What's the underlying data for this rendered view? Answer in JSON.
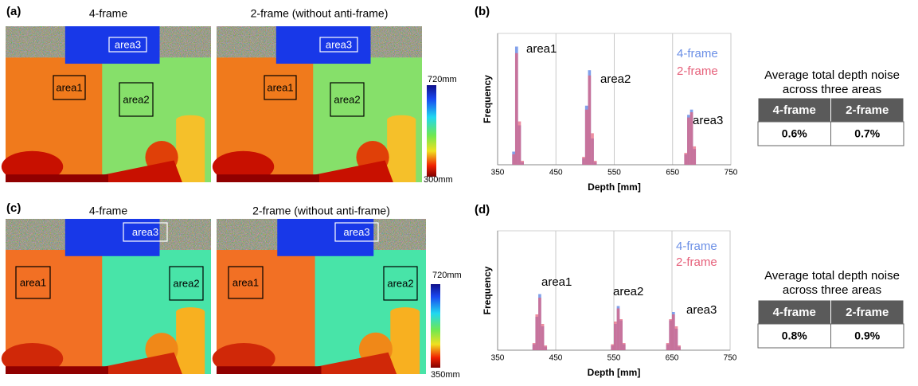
{
  "panels": [
    {
      "label": "(a)",
      "images": [
        {
          "title": "4-frame",
          "areas": [
            "area1",
            "area2",
            "area3"
          ]
        },
        {
          "title": "2-frame (without anti-frame)",
          "areas": [
            "area1",
            "area2",
            "area3"
          ]
        }
      ],
      "colorbar": {
        "top": "720mm",
        "bottom": "300mm"
      }
    },
    {
      "label": "(c)",
      "images": [
        {
          "title": "4-frame",
          "areas": [
            "area1",
            "area2",
            "area3"
          ]
        },
        {
          "title": "2-frame (without anti-frame)",
          "areas": [
            "area1",
            "area2",
            "area3"
          ]
        }
      ],
      "colorbar": {
        "top": "720mm",
        "bottom": "350mm"
      }
    }
  ],
  "chart_data": [
    {
      "type": "histogram",
      "label": "(b)",
      "xlabel": "Depth [mm]",
      "ylabel": "Frequency",
      "xlim": [
        350,
        750
      ],
      "xticks": [
        350,
        450,
        550,
        650,
        750
      ],
      "ylim": [
        0,
        100
      ],
      "grid": true,
      "bins": [
        375,
        380,
        385,
        390,
        395,
        400,
        405,
        410,
        415,
        420,
        425,
        430,
        435,
        440,
        445,
        450,
        455,
        460,
        465,
        470,
        475,
        480,
        485,
        490,
        495,
        500,
        505,
        510,
        515,
        520,
        525,
        530,
        535,
        540,
        545,
        550,
        555,
        560,
        565,
        570,
        575,
        580,
        585,
        590,
        595,
        600,
        605,
        610,
        615,
        620,
        625,
        630,
        635,
        640,
        645,
        650,
        655,
        660,
        665,
        670,
        675,
        680,
        685,
        690
      ],
      "series": [
        {
          "name": "4-frame",
          "color": "#6b8fe6",
          "values": [
            10,
            90,
            30,
            2,
            0,
            0,
            0,
            0,
            0,
            0,
            0,
            0,
            0,
            0,
            0,
            0,
            0,
            0,
            0,
            0,
            0,
            0,
            0,
            0,
            5,
            45,
            72,
            20,
            2,
            0,
            0,
            0,
            0,
            0,
            0,
            0,
            0,
            0,
            0,
            0,
            0,
            0,
            0,
            0,
            0,
            0,
            0,
            0,
            0,
            0,
            0,
            0,
            0,
            0,
            0,
            0,
            0,
            0,
            0,
            8,
            38,
            42,
            12
          ]
        },
        {
          "name": "2-frame",
          "color": "#e6607a",
          "values": [
            8,
            85,
            33,
            3,
            0,
            0,
            0,
            0,
            0,
            0,
            0,
            0,
            0,
            0,
            0,
            0,
            0,
            0,
            0,
            0,
            0,
            0,
            0,
            0,
            6,
            42,
            68,
            24,
            3,
            0,
            0,
            0,
            0,
            0,
            0,
            0,
            0,
            0,
            0,
            0,
            0,
            0,
            0,
            0,
            0,
            0,
            0,
            0,
            0,
            0,
            0,
            0,
            0,
            0,
            0,
            0,
            0,
            0,
            0,
            9,
            36,
            40,
            14
          ]
        }
      ],
      "annotations": [
        "area1",
        "area2",
        "area3"
      ]
    },
    {
      "type": "histogram",
      "label": "(d)",
      "xlabel": "Depth [mm]",
      "ylabel": "Frequency",
      "xlim": [
        350,
        750
      ],
      "xticks": [
        350,
        450,
        550,
        650,
        750
      ],
      "ylim": [
        0,
        100
      ],
      "grid": true,
      "bins": [
        405,
        410,
        415,
        420,
        425,
        430,
        435,
        440,
        445,
        450,
        455,
        460,
        465,
        470,
        475,
        480,
        485,
        490,
        495,
        500,
        505,
        510,
        515,
        520,
        525,
        530,
        535,
        540,
        545,
        550,
        555,
        560,
        565,
        570,
        575,
        580,
        585,
        590,
        595,
        600,
        605,
        610,
        615,
        620,
        625,
        630,
        635,
        640,
        645,
        650,
        655,
        660,
        665,
        670
      ],
      "series": [
        {
          "name": "4-frame",
          "color": "#6b8fe6",
          "values": [
            0,
            5,
            28,
            47,
            20,
            3,
            0,
            0,
            0,
            0,
            0,
            0,
            0,
            0,
            0,
            0,
            0,
            0,
            0,
            0,
            0,
            0,
            0,
            0,
            0,
            0,
            0,
            0,
            4,
            22,
            37,
            25,
            5,
            0,
            0,
            0,
            0,
            0,
            0,
            0,
            0,
            0,
            0,
            0,
            0,
            0,
            0,
            5,
            25,
            32,
            18,
            3,
            0
          ]
        },
        {
          "name": "2-frame",
          "color": "#e6607a",
          "values": [
            0,
            6,
            30,
            44,
            22,
            4,
            0,
            0,
            0,
            0,
            0,
            0,
            0,
            0,
            0,
            0,
            0,
            0,
            0,
            0,
            0,
            0,
            0,
            0,
            0,
            0,
            0,
            0,
            5,
            24,
            35,
            26,
            6,
            0,
            0,
            0,
            0,
            0,
            0,
            0,
            0,
            0,
            0,
            0,
            0,
            0,
            0,
            6,
            26,
            30,
            20,
            4,
            0
          ]
        }
      ],
      "annotations": [
        "area1",
        "area2",
        "area3"
      ]
    }
  ],
  "tables": [
    {
      "title": [
        "Average total depth noise",
        "across three areas"
      ],
      "header": [
        "4-frame",
        "2-frame"
      ],
      "rows": [
        [
          "0.6%",
          "0.7%"
        ]
      ]
    },
    {
      "title": [
        "Average total depth noise",
        "across three areas"
      ],
      "header": [
        "4-frame",
        "2-frame"
      ],
      "rows": [
        [
          "0.8%",
          "0.9%"
        ]
      ]
    }
  ]
}
